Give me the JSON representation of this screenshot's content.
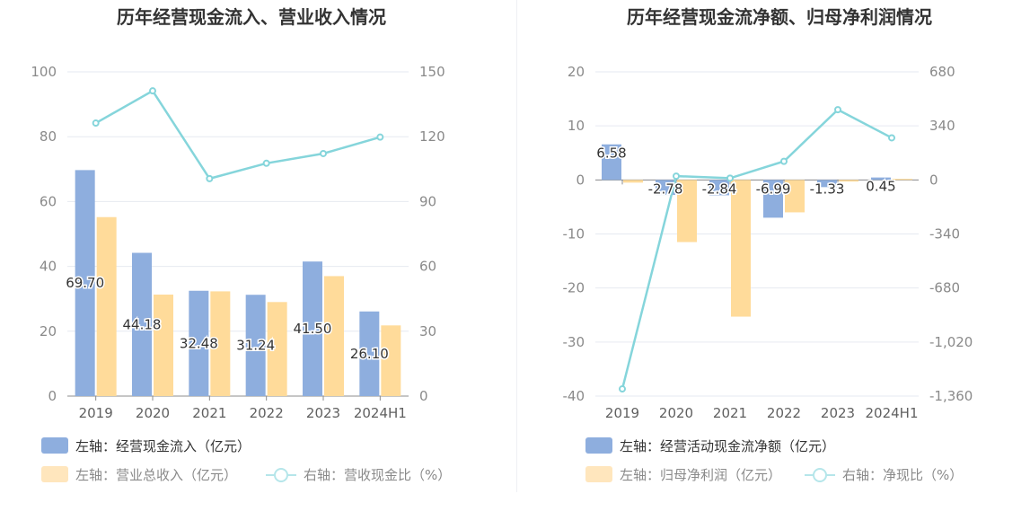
{
  "chart_data": [
    {
      "type": "bar",
      "title": "历年经营现金流入、营业收入情况",
      "categories": [
        "2019",
        "2020",
        "2021",
        "2022",
        "2023",
        "2024H1"
      ],
      "y_left": {
        "min": 0,
        "max": 100,
        "ticks": [
          "0",
          "20",
          "40",
          "60",
          "80",
          "100"
        ]
      },
      "y_right": {
        "min": 0,
        "max": 150,
        "ticks": [
          "0",
          "30",
          "60",
          "90",
          "120",
          "150"
        ]
      },
      "series": [
        {
          "name": "左轴：经营现金流入（亿元）",
          "kind": "bar",
          "axis": "left",
          "color": "#8eaede",
          "values": [
            69.7,
            44.18,
            32.48,
            31.24,
            41.5,
            26.1
          ],
          "labels": [
            "69.70",
            "44.18",
            "32.48",
            "31.24",
            "41.50",
            "26.10"
          ]
        },
        {
          "name": "左轴：营业总收入（亿元）",
          "kind": "bar",
          "axis": "left",
          "color": "#ffdb9a",
          "values": [
            55.2,
            31.3,
            32.3,
            29.0,
            37.0,
            21.8
          ]
        },
        {
          "name": "右轴：营收现金比（%）",
          "kind": "line",
          "axis": "right",
          "color": "#85d5db",
          "values": [
            126.3,
            141.2,
            100.6,
            107.7,
            112.2,
            119.8
          ]
        }
      ],
      "legend": [
        "左轴：经营现金流入（亿元）",
        "左轴：营业总收入（亿元）",
        "右轴：营收现金比（%）"
      ]
    },
    {
      "type": "bar",
      "title": "历年经营现金流净额、归母净利润情况",
      "categories": [
        "2019",
        "2020",
        "2021",
        "2022",
        "2023",
        "2024H1"
      ],
      "y_left": {
        "min": -40,
        "max": 20,
        "ticks": [
          "-40",
          "-30",
          "-20",
          "-10",
          "0",
          "10",
          "20"
        ]
      },
      "y_right": {
        "min": -1360,
        "max": 680,
        "ticks": [
          "-1,360",
          "-1,020",
          "-680",
          "-340",
          "0",
          "340",
          "680"
        ]
      },
      "series": [
        {
          "name": "左轴：经营活动现金流净额（亿元）",
          "kind": "bar",
          "axis": "left",
          "color": "#8eaede",
          "values": [
            6.58,
            -2.78,
            -2.84,
            -6.99,
            -1.33,
            0.45
          ],
          "labels": [
            "6.58",
            "-2.78",
            "-2.84",
            "-6.99",
            "-1.33",
            "0.45"
          ]
        },
        {
          "name": "左轴：归母净利润（亿元）",
          "kind": "bar",
          "axis": "left",
          "color": "#ffdb9a",
          "values": [
            -0.5,
            -11.5,
            -25.3,
            -6.0,
            -0.3,
            0.2
          ]
        },
        {
          "name": "右轴：净现比（%）",
          "kind": "line",
          "axis": "right",
          "color": "#85d5db",
          "values": [
            -1315,
            24,
            11,
            117,
            442,
            265
          ]
        }
      ],
      "legend": [
        "左轴：经营活动现金流净额（亿元）",
        "左轴：归母净利润（亿元）",
        "右轴：净现比（%）"
      ]
    }
  ]
}
